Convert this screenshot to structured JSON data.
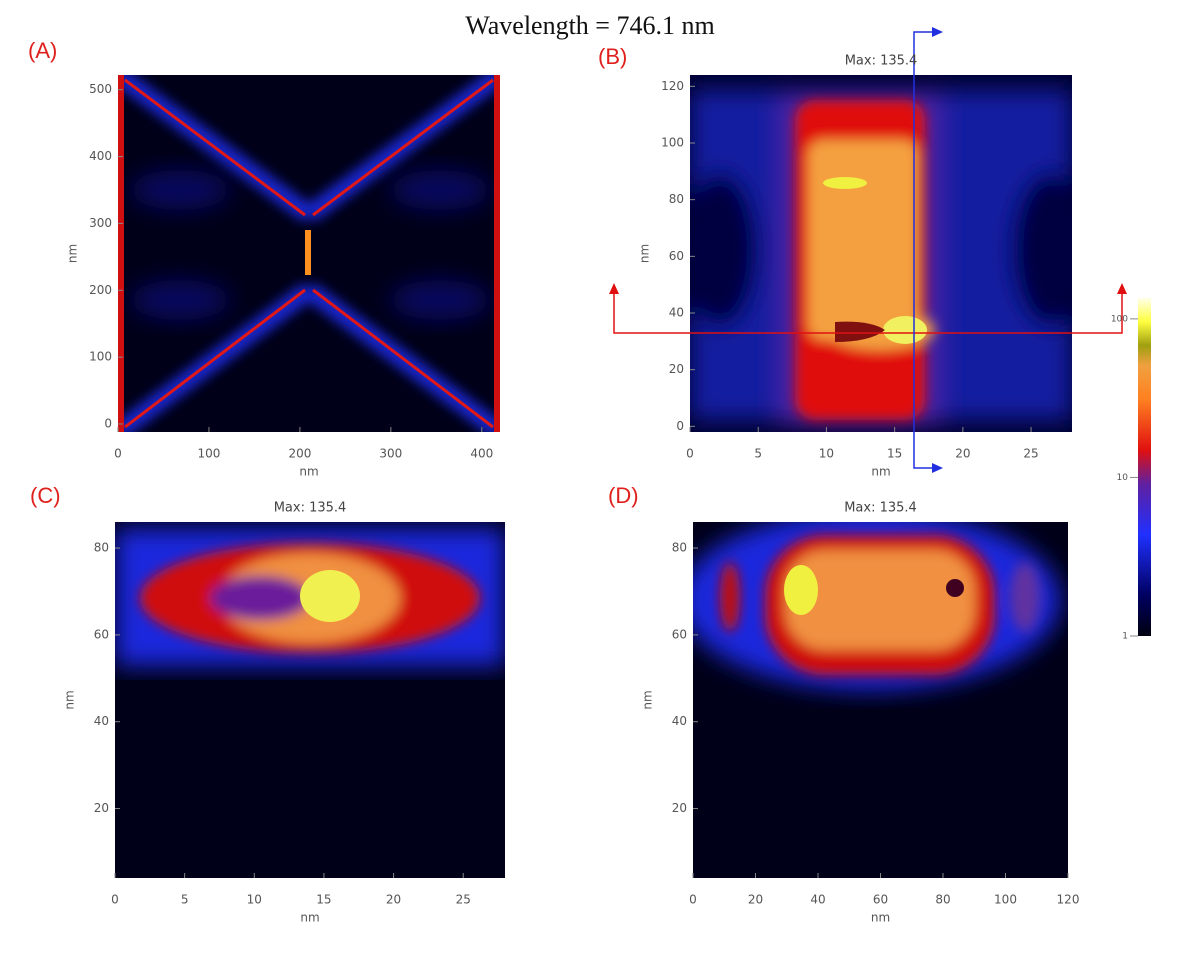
{
  "title": "Wavelength = 746.1 nm",
  "panels": [
    {
      "label": "(A)",
      "xlabel": "nm",
      "ylabel": "nm",
      "xlim": [
        0,
        420
      ],
      "xticks": [
        0,
        100,
        200,
        300,
        400
      ],
      "ylim": [
        -12,
        522
      ],
      "yticks": [
        0,
        100,
        200,
        300,
        400,
        500
      ]
    },
    {
      "label": "(B)",
      "subtitle": "Max: 135.4",
      "xlabel": "nm",
      "ylabel": "nm",
      "xlim": [
        0,
        28
      ],
      "xticks": [
        0,
        5,
        10,
        15,
        20,
        25
      ],
      "ylim": [
        -2,
        124
      ],
      "yticks": [
        0,
        20,
        40,
        60,
        80,
        100,
        120
      ]
    },
    {
      "label": "(C)",
      "subtitle": "Max: 135.4",
      "xlabel": "nm",
      "ylabel": "nm",
      "xlim": [
        0,
        28
      ],
      "xticks": [
        0,
        5,
        10,
        15,
        20,
        25
      ],
      "ylim": [
        4,
        86
      ],
      "yticks": [
        20,
        40,
        60,
        80
      ]
    },
    {
      "label": "(D)",
      "subtitle": "Max: 135.4",
      "xlabel": "nm",
      "ylabel": "nm",
      "xlim": [
        0,
        120
      ],
      "xticks": [
        0,
        20,
        40,
        60,
        80,
        100,
        120
      ],
      "ylim": [
        4,
        86
      ],
      "yticks": [
        20,
        40,
        60,
        80
      ]
    }
  ],
  "colorbar": {
    "scale": "log",
    "lim": [
      1,
      135.4
    ],
    "ticks": [
      1,
      10,
      100
    ]
  }
}
